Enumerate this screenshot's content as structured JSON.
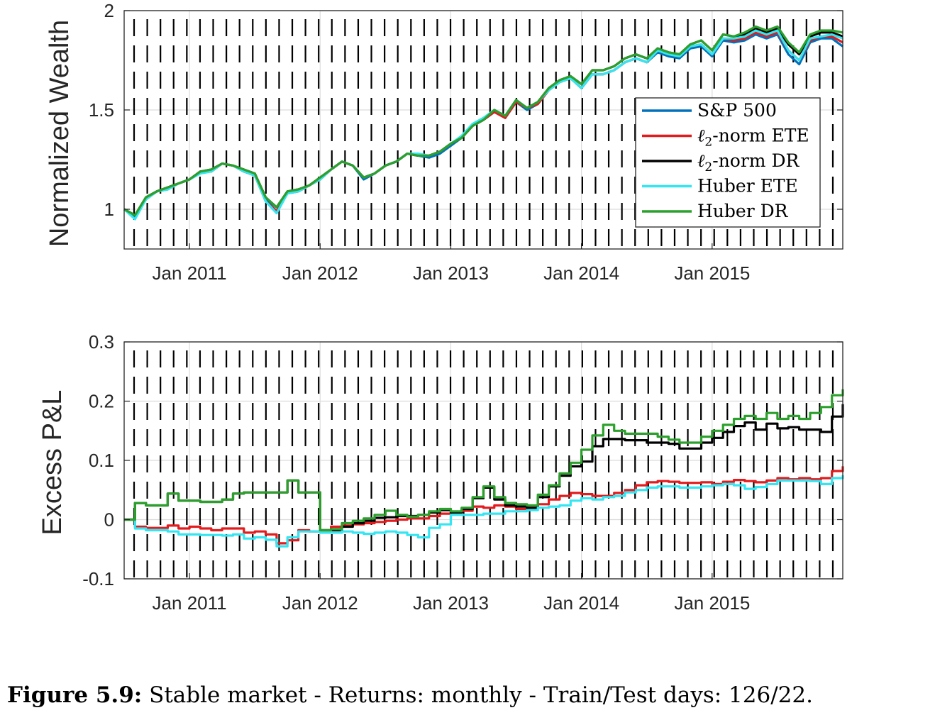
{
  "caption": {
    "label": "Figure 5.9:",
    "text": "Stable market - Returns: monthly - Train/Test days: 126/22."
  },
  "colors": {
    "sp500": "#0072BD",
    "l2_ete": "#E41A1C",
    "l2_dr": "#000000",
    "huber_ete": "#33E6F2",
    "huber_dr": "#2CA02C",
    "grid": "#dcdcdc",
    "rebalance_marker": "#000000"
  },
  "chart_data": [
    {
      "type": "line",
      "title": "",
      "xlabel": "",
      "ylabel": "Normalized Wealth",
      "xlim": [
        "2010-07",
        "2016-01"
      ],
      "ylim": [
        0.8,
        2.0
      ],
      "yticks": [
        1,
        1.5,
        2
      ],
      "ytick_labels": [
        "1",
        "1.5",
        "2"
      ],
      "xticks": [
        "Jan 2011",
        "Jan 2012",
        "Jan 2013",
        "Jan 2014",
        "Jan 2015"
      ],
      "grid": true,
      "legend_position": "lower-right",
      "x": [
        "2010-07",
        "2010-08",
        "2010-09",
        "2010-10",
        "2010-11",
        "2010-12",
        "2011-01",
        "2011-02",
        "2011-03",
        "2011-04",
        "2011-05",
        "2011-06",
        "2011-07",
        "2011-08",
        "2011-09",
        "2011-10",
        "2011-11",
        "2011-12",
        "2012-01",
        "2012-02",
        "2012-03",
        "2012-04",
        "2012-05",
        "2012-06",
        "2012-07",
        "2012-08",
        "2012-09",
        "2012-10",
        "2012-11",
        "2012-12",
        "2013-01",
        "2013-02",
        "2013-03",
        "2013-04",
        "2013-05",
        "2013-06",
        "2013-07",
        "2013-08",
        "2013-09",
        "2013-10",
        "2013-11",
        "2013-12",
        "2014-01",
        "2014-02",
        "2014-03",
        "2014-04",
        "2014-05",
        "2014-06",
        "2014-07",
        "2014-08",
        "2014-09",
        "2014-10",
        "2014-11",
        "2014-12",
        "2015-01",
        "2015-02",
        "2015-03",
        "2015-04",
        "2015-05",
        "2015-06",
        "2015-07",
        "2015-08",
        "2015-09",
        "2015-10",
        "2015-11",
        "2015-12",
        "2016-01"
      ],
      "series": [
        {
          "name": "S&P 500",
          "color_key": "sp500",
          "values": [
            1.0,
            0.96,
            1.05,
            1.09,
            1.1,
            1.13,
            1.15,
            1.19,
            1.19,
            1.23,
            1.22,
            1.19,
            1.17,
            1.05,
            0.99,
            1.08,
            1.09,
            1.12,
            1.15,
            1.2,
            1.24,
            1.22,
            1.15,
            1.18,
            1.22,
            1.24,
            1.28,
            1.27,
            1.26,
            1.28,
            1.32,
            1.36,
            1.42,
            1.45,
            1.49,
            1.46,
            1.54,
            1.5,
            1.53,
            1.6,
            1.64,
            1.66,
            1.61,
            1.68,
            1.68,
            1.7,
            1.74,
            1.76,
            1.74,
            1.79,
            1.77,
            1.76,
            1.81,
            1.82,
            1.77,
            1.85,
            1.84,
            1.85,
            1.88,
            1.86,
            1.88,
            1.78,
            1.73,
            1.84,
            1.86,
            1.86,
            1.82
          ]
        },
        {
          "name": "ℓ2-norm ETE",
          "color_key": "l2_ete",
          "values": [
            1.0,
            0.97,
            1.05,
            1.09,
            1.11,
            1.13,
            1.15,
            1.19,
            1.19,
            1.23,
            1.22,
            1.19,
            1.17,
            1.04,
            0.99,
            1.08,
            1.09,
            1.12,
            1.15,
            1.2,
            1.24,
            1.22,
            1.16,
            1.18,
            1.22,
            1.24,
            1.28,
            1.27,
            1.27,
            1.29,
            1.33,
            1.36,
            1.42,
            1.45,
            1.49,
            1.46,
            1.54,
            1.51,
            1.53,
            1.6,
            1.64,
            1.66,
            1.61,
            1.68,
            1.68,
            1.7,
            1.74,
            1.76,
            1.74,
            1.8,
            1.78,
            1.77,
            1.82,
            1.83,
            1.78,
            1.86,
            1.85,
            1.86,
            1.89,
            1.87,
            1.89,
            1.8,
            1.75,
            1.85,
            1.87,
            1.87,
            1.84
          ]
        },
        {
          "name": "ℓ2-norm DR",
          "color_key": "l2_dr",
          "values": [
            1.0,
            0.97,
            1.06,
            1.09,
            1.11,
            1.13,
            1.15,
            1.19,
            1.2,
            1.23,
            1.22,
            1.2,
            1.18,
            1.06,
            1.01,
            1.09,
            1.1,
            1.12,
            1.16,
            1.2,
            1.24,
            1.22,
            1.16,
            1.18,
            1.22,
            1.24,
            1.28,
            1.27,
            1.27,
            1.29,
            1.33,
            1.36,
            1.42,
            1.45,
            1.5,
            1.47,
            1.55,
            1.51,
            1.54,
            1.61,
            1.65,
            1.67,
            1.63,
            1.7,
            1.7,
            1.72,
            1.76,
            1.78,
            1.76,
            1.81,
            1.79,
            1.78,
            1.83,
            1.85,
            1.8,
            1.88,
            1.87,
            1.88,
            1.91,
            1.89,
            1.91,
            1.83,
            1.78,
            1.87,
            1.89,
            1.89,
            1.87
          ]
        },
        {
          "name": "Huber ETE",
          "color_key": "huber_ete",
          "values": [
            1.0,
            0.95,
            1.05,
            1.09,
            1.1,
            1.13,
            1.15,
            1.18,
            1.19,
            1.23,
            1.22,
            1.19,
            1.17,
            1.04,
            0.98,
            1.08,
            1.09,
            1.12,
            1.15,
            1.2,
            1.24,
            1.22,
            1.16,
            1.18,
            1.22,
            1.24,
            1.28,
            1.28,
            1.27,
            1.29,
            1.33,
            1.37,
            1.43,
            1.46,
            1.5,
            1.47,
            1.55,
            1.51,
            1.54,
            1.6,
            1.64,
            1.66,
            1.61,
            1.68,
            1.68,
            1.7,
            1.74,
            1.76,
            1.74,
            1.8,
            1.78,
            1.77,
            1.82,
            1.83,
            1.78,
            1.86,
            1.86,
            1.87,
            1.9,
            1.88,
            1.9,
            1.8,
            1.75,
            1.86,
            1.87,
            1.88,
            1.86
          ]
        },
        {
          "name": "Huber DR",
          "color_key": "huber_dr",
          "values": [
            1.0,
            0.97,
            1.06,
            1.09,
            1.11,
            1.13,
            1.15,
            1.19,
            1.2,
            1.23,
            1.22,
            1.2,
            1.18,
            1.06,
            1.01,
            1.09,
            1.1,
            1.12,
            1.16,
            1.2,
            1.24,
            1.22,
            1.16,
            1.18,
            1.22,
            1.24,
            1.28,
            1.27,
            1.27,
            1.29,
            1.33,
            1.36,
            1.42,
            1.45,
            1.5,
            1.47,
            1.55,
            1.51,
            1.54,
            1.61,
            1.65,
            1.67,
            1.63,
            1.7,
            1.7,
            1.72,
            1.76,
            1.78,
            1.76,
            1.81,
            1.79,
            1.78,
            1.83,
            1.85,
            1.8,
            1.88,
            1.87,
            1.89,
            1.92,
            1.9,
            1.92,
            1.84,
            1.79,
            1.88,
            1.9,
            1.9,
            1.89
          ]
        }
      ]
    },
    {
      "type": "line",
      "title": "",
      "xlabel": "",
      "ylabel": "Excess P&L",
      "step": true,
      "xlim": [
        "2010-07",
        "2016-01"
      ],
      "ylim": [
        -0.1,
        0.3
      ],
      "yticks": [
        -0.1,
        0,
        0.1,
        0.2,
        0.3
      ],
      "ytick_labels": [
        "-0.1",
        "0",
        "0.1",
        "0.2",
        "0.3"
      ],
      "xticks": [
        "Jan 2011",
        "Jan 2012",
        "Jan 2013",
        "Jan 2014",
        "Jan 2015"
      ],
      "grid": true,
      "x": [
        "2010-07",
        "2010-08",
        "2010-09",
        "2010-10",
        "2010-11",
        "2010-12",
        "2011-01",
        "2011-02",
        "2011-03",
        "2011-04",
        "2011-05",
        "2011-06",
        "2011-07",
        "2011-08",
        "2011-09",
        "2011-10",
        "2011-11",
        "2011-12",
        "2012-01",
        "2012-02",
        "2012-03",
        "2012-04",
        "2012-05",
        "2012-06",
        "2012-07",
        "2012-08",
        "2012-09",
        "2012-10",
        "2012-11",
        "2012-12",
        "2013-01",
        "2013-02",
        "2013-03",
        "2013-04",
        "2013-05",
        "2013-06",
        "2013-07",
        "2013-08",
        "2013-09",
        "2013-10",
        "2013-11",
        "2013-12",
        "2014-01",
        "2014-02",
        "2014-03",
        "2014-04",
        "2014-05",
        "2014-06",
        "2014-07",
        "2014-08",
        "2014-09",
        "2014-10",
        "2014-11",
        "2014-12",
        "2015-01",
        "2015-02",
        "2015-03",
        "2015-04",
        "2015-05",
        "2015-06",
        "2015-07",
        "2015-08",
        "2015-09",
        "2015-10",
        "2015-11",
        "2015-12",
        "2016-01"
      ],
      "series": [
        {
          "name": "ℓ2-norm ETE",
          "color_key": "l2_ete",
          "values": [
            0,
            -0.012,
            -0.014,
            -0.014,
            -0.01,
            -0.015,
            -0.012,
            -0.015,
            -0.018,
            -0.015,
            -0.015,
            -0.022,
            -0.02,
            -0.025,
            -0.04,
            -0.035,
            -0.018,
            -0.02,
            -0.018,
            -0.012,
            -0.01,
            -0.008,
            -0.006,
            -0.004,
            -0.002,
            0,
            0.002,
            0.002,
            0.006,
            0.01,
            0.012,
            0.015,
            0.022,
            0.02,
            0.024,
            0.022,
            0.018,
            0.02,
            0.026,
            0.034,
            0.04,
            0.045,
            0.043,
            0.04,
            0.04,
            0.045,
            0.05,
            0.058,
            0.063,
            0.065,
            0.064,
            0.062,
            0.062,
            0.063,
            0.06,
            0.064,
            0.067,
            0.065,
            0.063,
            0.066,
            0.07,
            0.068,
            0.07,
            0.068,
            0.07,
            0.082,
            0.09
          ]
        },
        {
          "name": "ℓ2-norm DR",
          "color_key": "l2_dr",
          "values": [
            0,
            0.028,
            0.024,
            0.024,
            0.044,
            0.032,
            0.032,
            0.03,
            0.03,
            0.034,
            0.044,
            0.046,
            0.046,
            0.046,
            0.046,
            0.066,
            0.046,
            0.046,
            -0.018,
            -0.018,
            -0.012,
            -0.006,
            -0.002,
            0.003,
            0.004,
            0.006,
            0.006,
            0.008,
            0.012,
            0.016,
            0.012,
            0.018,
            0.036,
            0.054,
            0.034,
            0.024,
            0.022,
            0.02,
            0.038,
            0.056,
            0.074,
            0.09,
            0.098,
            0.124,
            0.136,
            0.136,
            0.134,
            0.134,
            0.13,
            0.13,
            0.128,
            0.12,
            0.12,
            0.13,
            0.138,
            0.148,
            0.158,
            0.164,
            0.152,
            0.162,
            0.154,
            0.156,
            0.152,
            0.152,
            0.148,
            0.174,
            0.195
          ]
        },
        {
          "name": "Huber ETE",
          "color_key": "huber_ete",
          "values": [
            0,
            -0.015,
            -0.018,
            -0.018,
            -0.02,
            -0.025,
            -0.025,
            -0.026,
            -0.026,
            -0.027,
            -0.025,
            -0.032,
            -0.03,
            -0.034,
            -0.045,
            -0.03,
            -0.02,
            -0.02,
            -0.022,
            -0.022,
            -0.02,
            -0.022,
            -0.024,
            -0.022,
            -0.02,
            -0.022,
            -0.026,
            -0.03,
            -0.014,
            -0.008,
            0.008,
            0.008,
            0.008,
            0.01,
            0.01,
            0.014,
            0.014,
            0.016,
            0.02,
            0.022,
            0.024,
            0.032,
            0.036,
            0.034,
            0.038,
            0.04,
            0.046,
            0.05,
            0.054,
            0.056,
            0.056,
            0.054,
            0.054,
            0.056,
            0.058,
            0.06,
            0.058,
            0.052,
            0.055,
            0.06,
            0.066,
            0.066,
            0.066,
            0.065,
            0.06,
            0.07,
            0.075
          ]
        },
        {
          "name": "Huber DR",
          "color_key": "huber_dr",
          "values": [
            0,
            0.028,
            0.024,
            0.024,
            0.044,
            0.032,
            0.032,
            0.03,
            0.03,
            0.034,
            0.044,
            0.046,
            0.046,
            0.046,
            0.046,
            0.066,
            0.046,
            0.046,
            -0.018,
            -0.016,
            -0.006,
            -0.002,
            0.002,
            0.008,
            0.015,
            0.008,
            0.005,
            0.008,
            0.014,
            0.018,
            0.014,
            0.02,
            0.038,
            0.056,
            0.038,
            0.028,
            0.026,
            0.024,
            0.042,
            0.058,
            0.078,
            0.096,
            0.118,
            0.142,
            0.16,
            0.15,
            0.145,
            0.145,
            0.145,
            0.14,
            0.135,
            0.13,
            0.13,
            0.14,
            0.15,
            0.16,
            0.17,
            0.175,
            0.17,
            0.18,
            0.17,
            0.175,
            0.17,
            0.18,
            0.19,
            0.21,
            0.22
          ]
        }
      ]
    }
  ],
  "legend": [
    {
      "label": "S&P 500",
      "color_key": "sp500",
      "math": false
    },
    {
      "label_prefix": "ℓ",
      "label_sub": "2",
      "label_suffix": "-norm ETE",
      "color_key": "l2_ete",
      "math": true
    },
    {
      "label_prefix": "ℓ",
      "label_sub": "2",
      "label_suffix": "-norm DR",
      "color_key": "l2_dr",
      "math": true
    },
    {
      "label": "Huber ETE",
      "color_key": "huber_ete",
      "math": false
    },
    {
      "label": "Huber DR",
      "color_key": "huber_dr",
      "math": false
    }
  ]
}
